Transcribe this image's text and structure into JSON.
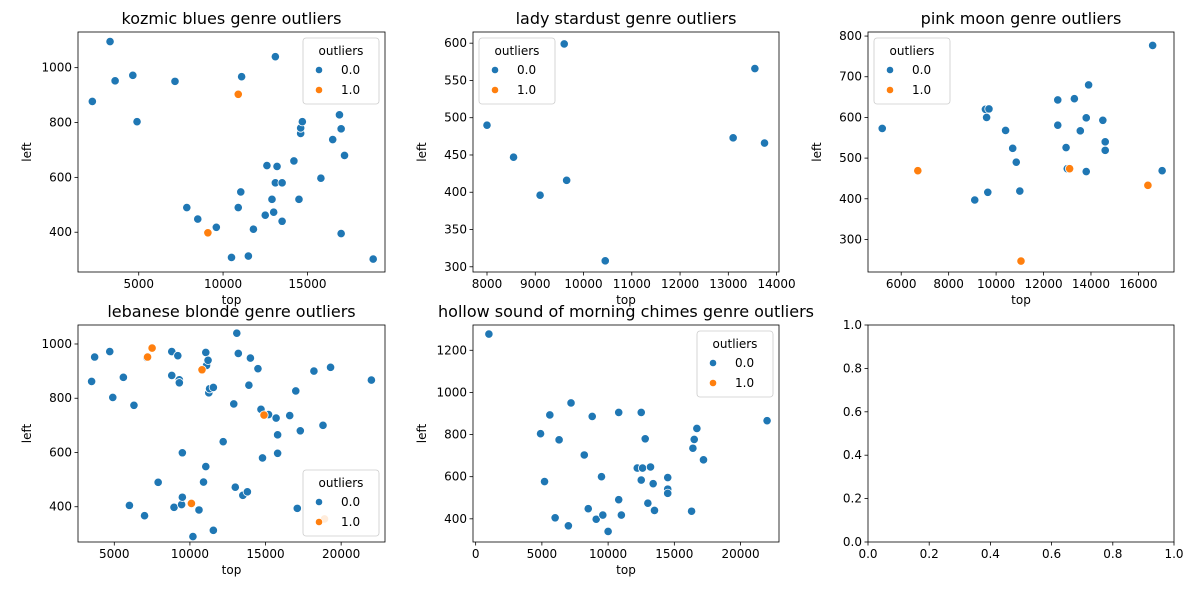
{
  "colors": {
    "outlier_0": "#1f77b4",
    "outlier_1": "#ff7f0e",
    "point_edge": "#ffffff",
    "axis": "#000000",
    "legend_border": "#cccccc"
  },
  "legend": {
    "title": "outliers",
    "labels": [
      "0.0",
      "1.0"
    ]
  },
  "chart_data": [
    {
      "type": "scatter",
      "title": "kozmic blues genre outliers",
      "xlabel": "top",
      "ylabel": "left",
      "xlim": [
        1400,
        19600
      ],
      "ylim": [
        255,
        1130
      ],
      "xticks": [
        5000,
        10000,
        15000
      ],
      "yticks": [
        400,
        600,
        800,
        1000
      ],
      "legend_position": "upper right",
      "series": [
        {
          "name": "0.0",
          "points": [
            [
              2250,
              877
            ],
            [
              3300,
              1095
            ],
            [
              3600,
              952
            ],
            [
              4650,
              972
            ],
            [
              4900,
              803
            ],
            [
              7150,
              950
            ],
            [
              7850,
              490
            ],
            [
              8500,
              448
            ],
            [
              9600,
              418
            ],
            [
              10500,
              308
            ],
            [
              10900,
              490
            ],
            [
              11050,
              547
            ],
            [
              11100,
              967
            ],
            [
              11500,
              313
            ],
            [
              11800,
              411
            ],
            [
              12500,
              462
            ],
            [
              12600,
              643
            ],
            [
              12900,
              520
            ],
            [
              13000,
              473
            ],
            [
              13100,
              1040
            ],
            [
              13100,
              580
            ],
            [
              13200,
              640
            ],
            [
              13500,
              580
            ],
            [
              13500,
              440
            ],
            [
              14200,
              660
            ],
            [
              14500,
              520
            ],
            [
              14600,
              760
            ],
            [
              14600,
              780
            ],
            [
              14700,
              803
            ],
            [
              15800,
              597
            ],
            [
              16500,
              738
            ],
            [
              16900,
              828
            ],
            [
              17000,
              395
            ],
            [
              17000,
              777
            ],
            [
              17200,
              680
            ],
            [
              18900,
              302
            ]
          ]
        },
        {
          "name": "1.0",
          "points": [
            [
              10900,
              903
            ],
            [
              9100,
              398
            ]
          ]
        }
      ]
    },
    {
      "type": "scatter",
      "title": "lady stardust genre outliers",
      "xlabel": "top",
      "ylabel": "left",
      "xlim": [
        7710,
        14050
      ],
      "ylim": [
        293,
        615
      ],
      "xticks": [
        8000,
        9000,
        10000,
        11000,
        12000,
        13000,
        14000
      ],
      "yticks": [
        300,
        350,
        400,
        450,
        500,
        550,
        600
      ],
      "legend_position": "upper left",
      "series": [
        {
          "name": "0.0",
          "points": [
            [
              8000,
              490
            ],
            [
              8550,
              447
            ],
            [
              9100,
              396
            ],
            [
              9600,
              599
            ],
            [
              9650,
              416
            ],
            [
              10450,
              308
            ],
            [
              13100,
              473
            ],
            [
              13550,
              566
            ],
            [
              13750,
              466
            ]
          ]
        },
        {
          "name": "1.0",
          "points": []
        }
      ]
    },
    {
      "type": "scatter",
      "title": "pink moon genre outliers",
      "xlabel": "top",
      "ylabel": "left",
      "xlim": [
        4600,
        17500
      ],
      "ylim": [
        220,
        810
      ],
      "xticks": [
        6000,
        8000,
        10000,
        12000,
        14000,
        16000
      ],
      "yticks": [
        300,
        400,
        500,
        600,
        700,
        800
      ],
      "legend_position": "upper left",
      "series": [
        {
          "name": "0.0",
          "points": [
            [
              5200,
              573
            ],
            [
              9100,
              397
            ],
            [
              9550,
              620
            ],
            [
              9600,
              600
            ],
            [
              9700,
              621
            ],
            [
              9650,
              416
            ],
            [
              10400,
              568
            ],
            [
              10700,
              524
            ],
            [
              10850,
              490
            ],
            [
              11000,
              419
            ],
            [
              12600,
              643
            ],
            [
              12600,
              581
            ],
            [
              12950,
              526
            ],
            [
              13000,
              474
            ],
            [
              13300,
              646
            ],
            [
              13550,
              567
            ],
            [
              13800,
              599
            ],
            [
              13800,
              467
            ],
            [
              13900,
              680
            ],
            [
              14500,
              593
            ],
            [
              14600,
              540
            ],
            [
              14600,
              519
            ],
            [
              16600,
              777
            ],
            [
              17000,
              469
            ]
          ]
        },
        {
          "name": "1.0",
          "points": [
            [
              6700,
              469
            ],
            [
              13100,
              474
            ],
            [
              16400,
              433
            ],
            [
              11050,
              247
            ]
          ]
        }
      ]
    },
    {
      "type": "scatter",
      "title": "lebanese blonde genre outliers",
      "xlabel": "top",
      "ylabel": "left",
      "xlim": [
        2600,
        22900
      ],
      "ylim": [
        270,
        1070
      ],
      "xticks": [
        5000,
        10000,
        15000,
        20000
      ],
      "yticks": [
        400,
        600,
        800,
        1000
      ],
      "legend_position": "lower right",
      "series": [
        {
          "name": "0.0",
          "points": [
            [
              3500,
              862
            ],
            [
              3700,
              952
            ],
            [
              4700,
              972
            ],
            [
              4900,
              803
            ],
            [
              5600,
              877
            ],
            [
              6000,
              405
            ],
            [
              6300,
              774
            ],
            [
              7000,
              367
            ],
            [
              7150,
              950
            ],
            [
              7900,
              490
            ],
            [
              8800,
              972
            ],
            [
              8800,
              884
            ],
            [
              8950,
              398
            ],
            [
              9200,
              957
            ],
            [
              9300,
              868
            ],
            [
              9300,
              857
            ],
            [
              9450,
              408
            ],
            [
              9500,
              435
            ],
            [
              9500,
              599
            ],
            [
              10200,
              290
            ],
            [
              10600,
              388
            ],
            [
              10900,
              491
            ],
            [
              11050,
              969
            ],
            [
              11050,
              548
            ],
            [
              11100,
              921
            ],
            [
              11200,
              940
            ],
            [
              11250,
              820
            ],
            [
              11300,
              835
            ],
            [
              11550,
              313
            ],
            [
              11550,
              840
            ],
            [
              12200,
              640
            ],
            [
              12900,
              779
            ],
            [
              13000,
              472
            ],
            [
              13100,
              1040
            ],
            [
              13200,
              965
            ],
            [
              13500,
              442
            ],
            [
              13800,
              455
            ],
            [
              13900,
              848
            ],
            [
              14000,
              948
            ],
            [
              14500,
              909
            ],
            [
              14700,
              759
            ],
            [
              14800,
              580
            ],
            [
              15200,
              740
            ],
            [
              15700,
              727
            ],
            [
              15800,
              665
            ],
            [
              15800,
              597
            ],
            [
              16600,
              736
            ],
            [
              17000,
              827
            ],
            [
              17100,
              394
            ],
            [
              17300,
              680
            ],
            [
              18200,
              900
            ],
            [
              18800,
              700
            ],
            [
              19300,
              914
            ],
            [
              22000,
              867
            ]
          ]
        },
        {
          "name": "1.0",
          "points": [
            [
              7200,
              952
            ],
            [
              7500,
              985
            ],
            [
              10800,
              905
            ],
            [
              14900,
              738
            ],
            [
              10100,
              412
            ],
            [
              18900,
              355
            ]
          ]
        }
      ]
    },
    {
      "type": "scatter",
      "title": "hollow sound of morning chimes genre outliers",
      "xlabel": "top",
      "ylabel": "left",
      "xlim": [
        -200,
        22900
      ],
      "ylim": [
        290,
        1320
      ],
      "xticks": [
        0,
        5000,
        10000,
        15000,
        20000
      ],
      "yticks": [
        400,
        600,
        800,
        1000,
        1200
      ],
      "legend_position": "upper right",
      "series": [
        {
          "name": "0.0",
          "points": [
            [
              1000,
              1277
            ],
            [
              4900,
              804
            ],
            [
              5200,
              577
            ],
            [
              5600,
              893
            ],
            [
              6000,
              405
            ],
            [
              6300,
              775
            ],
            [
              7000,
              367
            ],
            [
              7200,
              950
            ],
            [
              8200,
              703
            ],
            [
              8500,
              448
            ],
            [
              8800,
              886
            ],
            [
              9100,
              398
            ],
            [
              9500,
              600
            ],
            [
              9600,
              418
            ],
            [
              10000,
              340
            ],
            [
              10800,
              905
            ],
            [
              10800,
              491
            ],
            [
              11000,
              418
            ],
            [
              12200,
              641
            ],
            [
              12500,
              905
            ],
            [
              12500,
              584
            ],
            [
              12600,
              641
            ],
            [
              12800,
              780
            ],
            [
              13000,
              474
            ],
            [
              13200,
              646
            ],
            [
              13400,
              567
            ],
            [
              13500,
              440
            ],
            [
              14500,
              596
            ],
            [
              14500,
              541
            ],
            [
              14500,
              521
            ],
            [
              16300,
              436
            ],
            [
              16400,
              735
            ],
            [
              16500,
              777
            ],
            [
              16700,
              829
            ],
            [
              17200,
              680
            ],
            [
              22000,
              866
            ]
          ]
        },
        {
          "name": "1.0",
          "points": []
        }
      ]
    },
    {
      "type": "scatter",
      "title": "",
      "xlabel": "",
      "ylabel": "",
      "xlim": [
        0,
        1
      ],
      "ylim": [
        0,
        1
      ],
      "xticks": [
        0.0,
        0.2,
        0.4,
        0.6,
        0.8,
        1.0
      ],
      "yticks": [
        0.0,
        0.2,
        0.4,
        0.6,
        0.8,
        1.0
      ],
      "tick_format": "fixed1",
      "legend_position": "none",
      "series": []
    }
  ]
}
